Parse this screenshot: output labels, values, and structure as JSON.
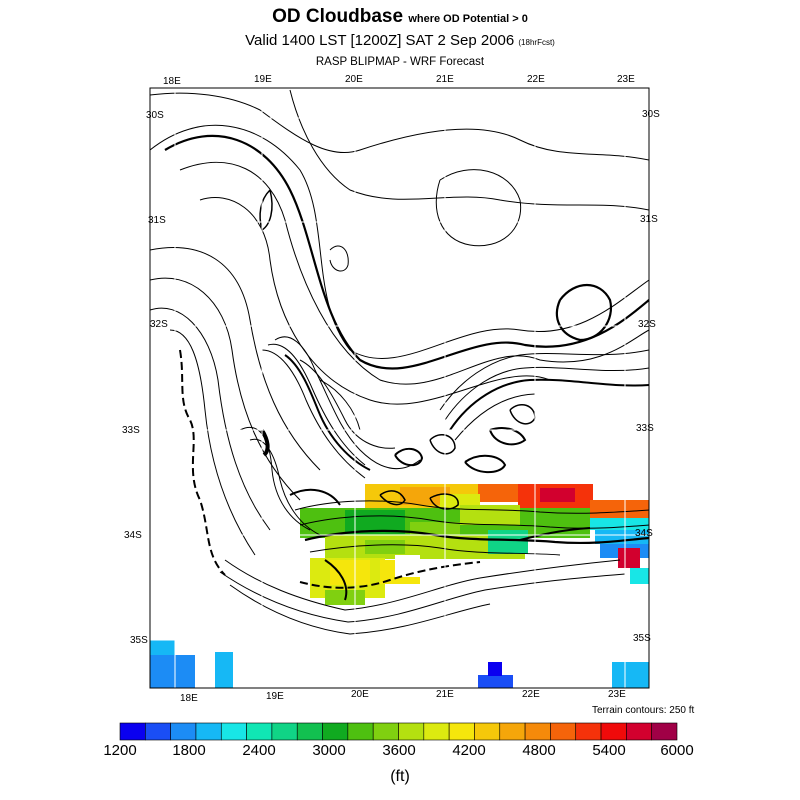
{
  "header": {
    "title": "OD Cloudbase",
    "title_sub": "where OD Potential > 0",
    "valid_line": "Valid 1400 LST [1200Z] SAT 2 Sep 2006",
    "forecast_tag": "(18hrFcst)",
    "source_line": "RASP BLIPMAP - WRF Forecast"
  },
  "map": {
    "grid_top_labels": [
      "18E",
      "19E",
      "20E",
      "21E",
      "22E",
      "23E"
    ],
    "grid_bottom_labels": [
      "18E",
      "19E",
      "20E",
      "21E",
      "22E",
      "23E"
    ],
    "grid_left_labels": [
      "30S",
      "31S",
      "32S",
      "33S",
      "34S",
      "35S"
    ],
    "grid_right_labels": [
      "30S",
      "31S",
      "32S",
      "33S",
      "34S",
      "35S"
    ],
    "terrain_note": "Terrain contours: 250 ft"
  },
  "colorbar": {
    "colors": [
      "#0a00f0",
      "#1a4ef5",
      "#1c8cf5",
      "#16b8f5",
      "#18e6e6",
      "#10e6b4",
      "#10d486",
      "#12c050",
      "#10aa20",
      "#4ec010",
      "#80d010",
      "#b4e010",
      "#dcea10",
      "#f5e60c",
      "#f5c80a",
      "#f5a60a",
      "#f58a0a",
      "#f5640a",
      "#f5320a",
      "#f00a0a",
      "#d2002e",
      "#a00046"
    ],
    "tick_labels": [
      "1200",
      "1800",
      "2400",
      "3000",
      "3600",
      "4200",
      "4800",
      "5400",
      "6000"
    ],
    "units_label": "(ft)"
  }
}
